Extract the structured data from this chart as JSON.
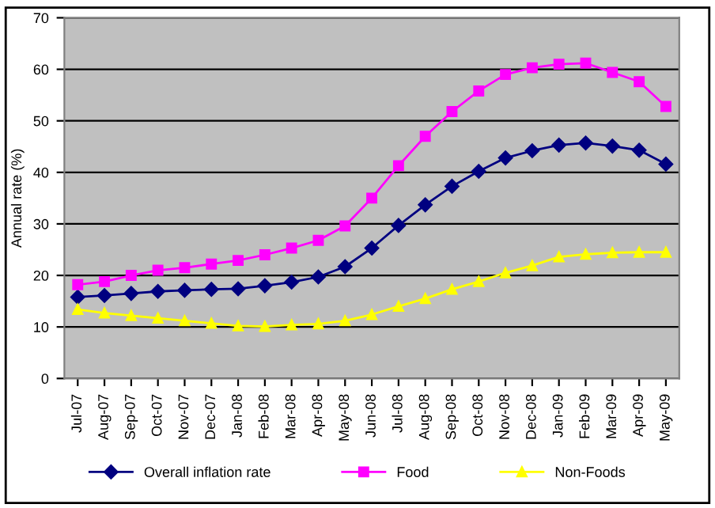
{
  "chart_data": {
    "type": "line",
    "ylabel": "Annual rate (%)",
    "categories": [
      "Jul-07",
      "Aug-07",
      "Sep-07",
      "Oct-07",
      "Nov-07",
      "Dec-07",
      "Jan-08",
      "Feb-08",
      "Mar-08",
      "Apr-08",
      "May-08",
      "Jun-08",
      "Jul-08",
      "Aug-08",
      "Sep-08",
      "Oct-08",
      "Nov-08",
      "Dec-08",
      "Jan-09",
      "Feb-09",
      "Mar-09",
      "Apr-09",
      "May-09"
    ],
    "series": [
      {
        "name": "Overall inflation rate",
        "color": "#000080",
        "marker": "diamond",
        "values": [
          15.8,
          16.1,
          16.5,
          16.9,
          17.1,
          17.3,
          17.4,
          18,
          18.7,
          19.7,
          21.7,
          25.3,
          29.7,
          33.7,
          37.3,
          40.2,
          42.8,
          44.2,
          45.3,
          45.7,
          45.1,
          44.3,
          41.6
        ]
      },
      {
        "name": "Food",
        "color": "#ff00ff",
        "marker": "square",
        "values": [
          18.2,
          18.8,
          20,
          21,
          21.5,
          22.2,
          22.9,
          24,
          25.3,
          26.8,
          29.6,
          35,
          41.3,
          47,
          51.8,
          55.8,
          59,
          60.3,
          61,
          61.2,
          59.4,
          57.6,
          52.8
        ]
      },
      {
        "name": "Non-Foods",
        "color": "#ffff00",
        "marker": "triangle",
        "values": [
          13.4,
          12.7,
          12.2,
          11.7,
          11.2,
          10.7,
          10.2,
          10.1,
          10.4,
          10.6,
          11.2,
          12.4,
          14,
          15.5,
          17.3,
          18.8,
          20.5,
          21.9,
          23.6,
          24.1,
          24.4,
          24.5,
          24.5
        ]
      }
    ],
    "ylim": [
      0,
      70
    ],
    "yticks": [
      0,
      10,
      20,
      30,
      40,
      50,
      60,
      70
    ],
    "grid": "y",
    "legend": "bottom"
  }
}
